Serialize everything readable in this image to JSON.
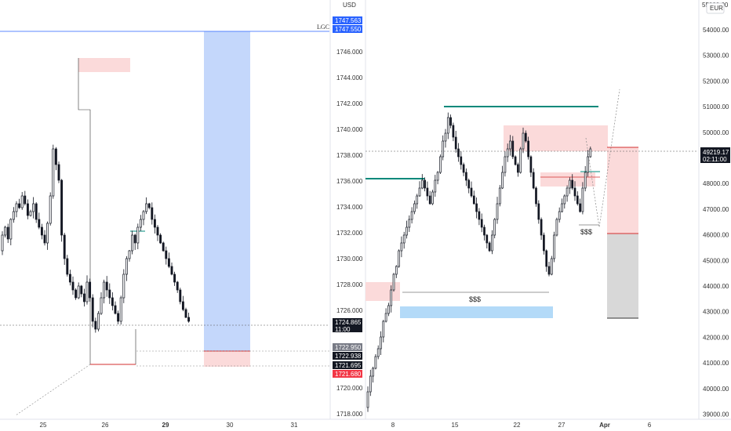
{
  "left_chart": {
    "price_axis": {
      "currency": "USD",
      "ticks": [
        "1746.000",
        "1744.000",
        "1742.000",
        "1740.000",
        "1738.000",
        "1736.000",
        "1734.000",
        "1732.000",
        "1730.000",
        "1728.000",
        "1726.000",
        "1722.950",
        "1720.000",
        "1718.000"
      ],
      "price_tags": [
        {
          "value": "1747.563",
          "color": "#2962ff"
        },
        {
          "value": "1747.550",
          "color": "#2962ff"
        },
        {
          "value": "1724.865",
          "sub": "11:00",
          "color": "#131722"
        },
        {
          "value": "1722.950",
          "color": "#787b86"
        },
        {
          "value": "1722.938",
          "color": "#131722"
        },
        {
          "value": "1721.695",
          "color": "#131722"
        },
        {
          "value": "1721.680",
          "color": "#f23645"
        }
      ]
    },
    "date_axis": [
      "25",
      "26",
      "29",
      "30",
      "31"
    ],
    "bold_date": "29",
    "line_label": "LGC"
  },
  "right_chart": {
    "price_axis": {
      "ticks": [
        "54000.00",
        "53000.00",
        "52000.00",
        "51000.00",
        "50000.00",
        "49000.00",
        "48000.00",
        "47000.00",
        "46000.00",
        "45000.00",
        "44000.00",
        "43000.00",
        "42000.00",
        "41000.00",
        "40000.00",
        "39000.00"
      ],
      "top_cut_label": "55000.00",
      "currency_badge": "EUR",
      "current_price": {
        "value": "49219.17",
        "sub": "02:11:00",
        "color": "#131722"
      }
    },
    "date_axis": [
      "8",
      "15",
      "22",
      "27",
      "Apr",
      "6"
    ],
    "bold_date": "Apr",
    "annotations": [
      "$$$",
      "$$$"
    ]
  },
  "colors": {
    "bull": "#ffffff",
    "bear": "#131722",
    "teal": "#00897b",
    "blue_zone": "#c4d7fb",
    "pink_zone": "#fbdada",
    "gray_zone": "#d8d8d8",
    "red_line": "#d32f2f",
    "light_blue": "#b3daf8"
  }
}
